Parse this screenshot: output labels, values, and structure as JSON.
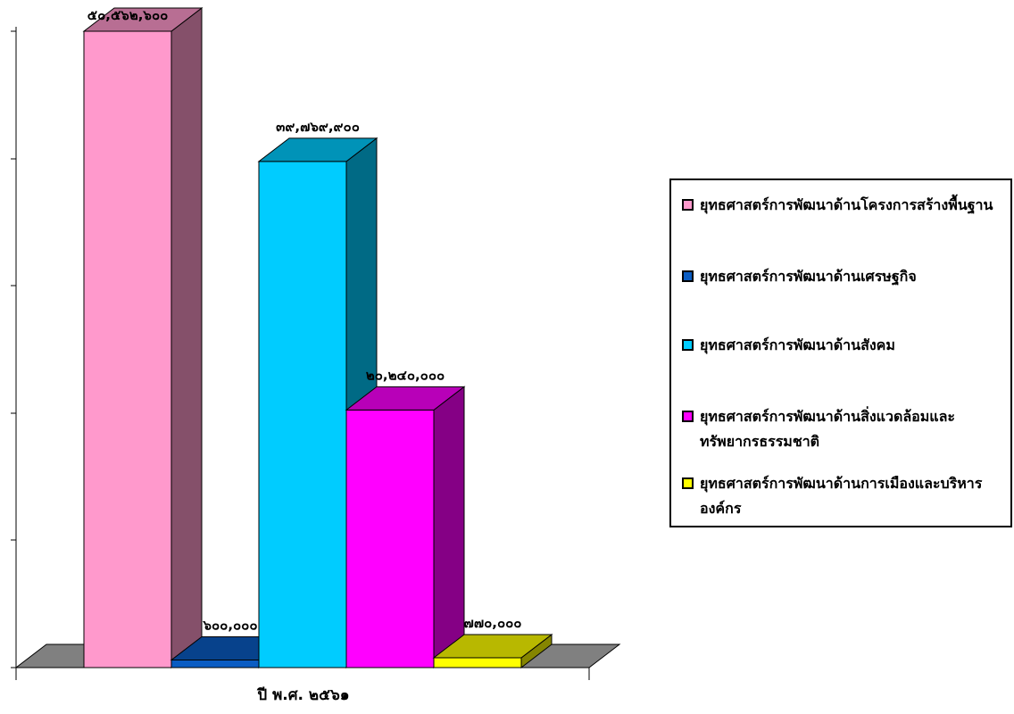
{
  "chart_data": {
    "type": "bar",
    "style": "3d-column",
    "xlabel": "ปี พ.ศ. ๒๕๖๑",
    "categories": [
      "ปี พ.ศ. ๒๕๖๑"
    ],
    "ylim": [
      0,
      50000000
    ],
    "grid": false,
    "legend_position": "right",
    "series": [
      {
        "name": "ยุทธศาสตร์การพัฒนาด้านโครงการสร้างพื้นฐาน",
        "value": 50562600,
        "label": "๕๐,๕๖๒,๖๐๐",
        "color": "#ff99cc"
      },
      {
        "name": "ยุทธศาสตร์การพัฒนาด้านเศรษฐกิจ",
        "value": 600000,
        "label": "๖๐๐,๐๐๐",
        "color": "#0a5cc2"
      },
      {
        "name": "ยุทธศาสตร์การพัฒนาด้านสังคม",
        "value": 39769900,
        "label": "๓๙,๗๖๙,๙๐๐",
        "color": "#00ccff"
      },
      {
        "name": "ยุทธศาสตร์การพัฒนาด้านสิ่งแวดล้อมและทรัพยากรธรรมชาติ",
        "value": 20240000,
        "label": "๒๐,๒๔๐,๐๐๐",
        "color": "#ff00ff"
      },
      {
        "name": "ยุทธศาสตร์การพัฒนาด้านการเมืองและบริหารองค์กร",
        "value": 770000,
        "label": "๗๗๐,๐๐๐",
        "color": "#ffff00"
      }
    ]
  }
}
